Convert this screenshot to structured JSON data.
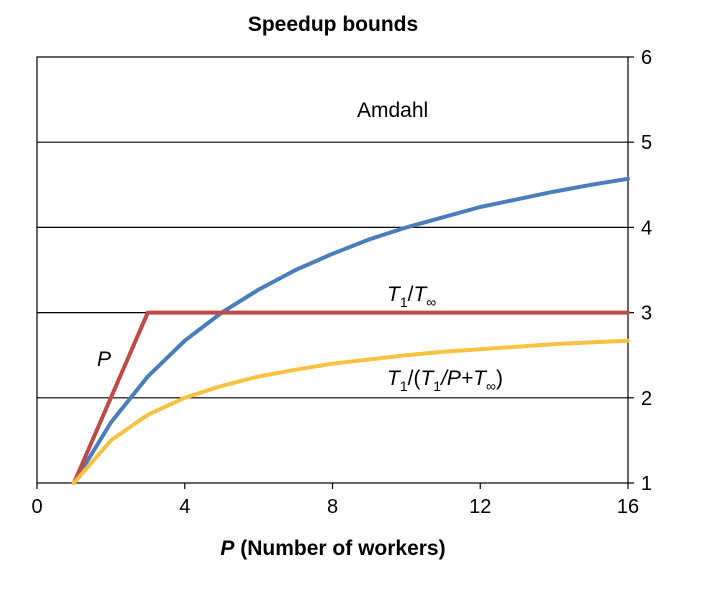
{
  "chart_data": {
    "type": "line",
    "title": "Speedup bounds",
    "xlabel_var": "P",
    "xlabel_rest": " (Number of workers)",
    "xlim": [
      0,
      16
    ],
    "ylim": [
      1,
      6
    ],
    "x_ticks": [
      0,
      4,
      8,
      12,
      16
    ],
    "y_ticks": [
      1,
      2,
      3,
      4,
      5,
      6
    ],
    "y_axis_side": "right",
    "grid": "horizontal",
    "series": [
      {
        "key": "amdahl",
        "color": "#4a7ebb",
        "points": [
          [
            1,
            1
          ],
          [
            2,
            1.71
          ],
          [
            3,
            2.25
          ],
          [
            4,
            2.67
          ],
          [
            5,
            3.0
          ],
          [
            6,
            3.27
          ],
          [
            7,
            3.5
          ],
          [
            8,
            3.69
          ],
          [
            9,
            3.86
          ],
          [
            10,
            4.0
          ],
          [
            11,
            4.12
          ],
          [
            12,
            4.24
          ],
          [
            13,
            4.33
          ],
          [
            14,
            4.42
          ],
          [
            15,
            4.5
          ],
          [
            16,
            4.57
          ]
        ]
      },
      {
        "key": "span",
        "color": "#be4b48",
        "points": [
          [
            1,
            1
          ],
          [
            3,
            3
          ],
          [
            16,
            3
          ]
        ]
      },
      {
        "key": "greedy",
        "color": "#f7c142",
        "points": [
          [
            1,
            1
          ],
          [
            2,
            1.5
          ],
          [
            3,
            1.8
          ],
          [
            4,
            2.0
          ],
          [
            5,
            2.14
          ],
          [
            6,
            2.25
          ],
          [
            7,
            2.33
          ],
          [
            8,
            2.4
          ],
          [
            9,
            2.45
          ],
          [
            10,
            2.5
          ],
          [
            11,
            2.54
          ],
          [
            12,
            2.57
          ],
          [
            13,
            2.6
          ],
          [
            14,
            2.63
          ],
          [
            15,
            2.65
          ],
          [
            16,
            2.67
          ]
        ]
      }
    ],
    "annotations": {
      "amdahl": "Amdahl",
      "p": "P",
      "t1": "T",
      "sub1": "1",
      "slash": "/",
      "tinf": "T",
      "subinf": "∞",
      "open": "/(",
      "pplus": "/P+",
      "close": ")"
    }
  }
}
